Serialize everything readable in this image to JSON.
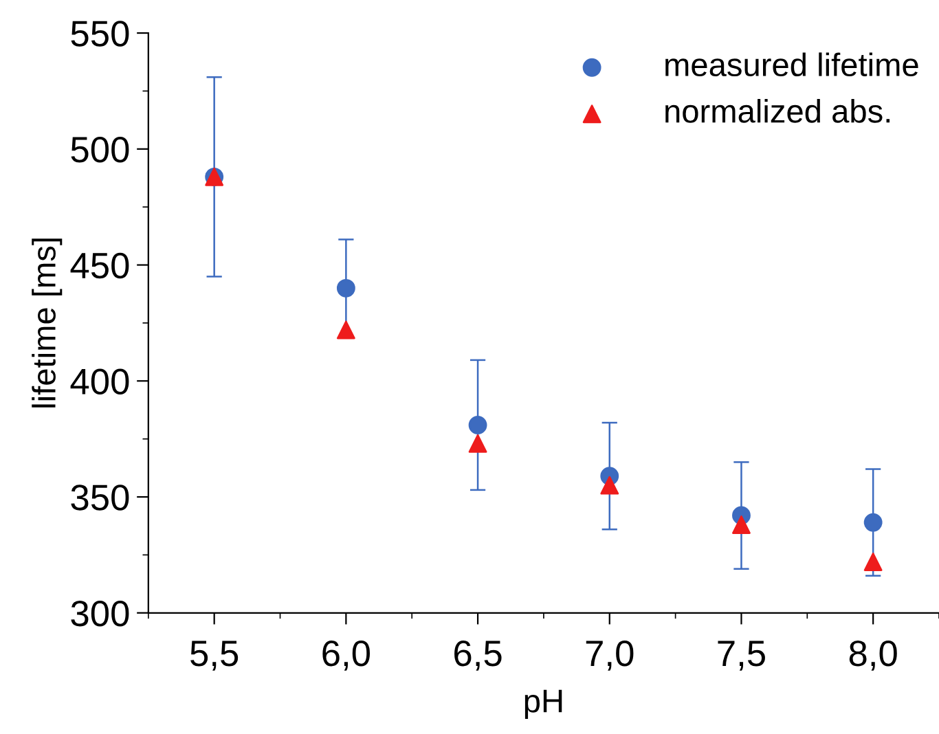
{
  "chart_data": {
    "type": "scatter",
    "xlabel": "pH",
    "ylabel": "lifetime [ms]",
    "x": [
      5.5,
      6.0,
      6.5,
      7.0,
      7.5,
      8.0
    ],
    "series": [
      {
        "name": "measured lifetime",
        "color": "#3d6bbf",
        "marker": "circle",
        "values": [
          488,
          440,
          381,
          359,
          342,
          339
        ],
        "errors": [
          43,
          21,
          28,
          23,
          23,
          23
        ]
      },
      {
        "name": "normalized abs.",
        "color": "#ee1c1c",
        "marker": "triangle",
        "values": [
          488,
          422,
          373,
          355,
          338,
          322
        ]
      }
    ],
    "xlim": [
      5.25,
      8.25
    ],
    "ylim": [
      300,
      550
    ],
    "xticks": [
      {
        "value": 5.5,
        "label": "5,5"
      },
      {
        "value": 6.0,
        "label": "6,0"
      },
      {
        "value": 6.5,
        "label": "6,5"
      },
      {
        "value": 7.0,
        "label": "7,0"
      },
      {
        "value": 7.5,
        "label": "7,5"
      },
      {
        "value": 8.0,
        "label": "8,0"
      }
    ],
    "yticks": [
      300,
      350,
      400,
      450,
      500,
      550
    ],
    "legend": "top right",
    "grid": false
  }
}
